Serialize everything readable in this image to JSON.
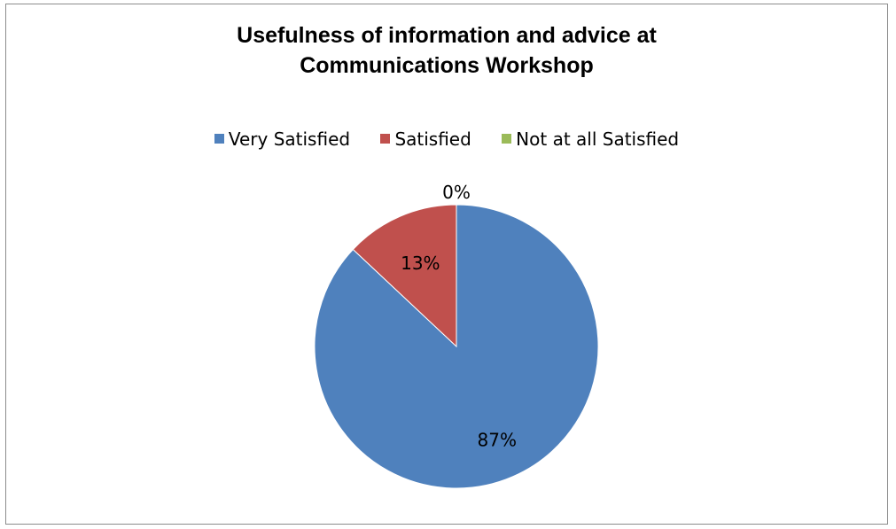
{
  "chart_data": {
    "type": "pie",
    "title_lines": [
      "Usefulness of information and advice at",
      "Communications Workshop"
    ],
    "categories": [
      "Very Satisfied",
      "Satisfied",
      "Not at all Satisfied"
    ],
    "values": [
      87,
      13,
      0
    ],
    "data_labels": [
      "87%",
      "13%",
      "0%"
    ],
    "colors": [
      "#4f81bd",
      "#c0504d",
      "#9bbb59"
    ],
    "legend_position": "top"
  }
}
